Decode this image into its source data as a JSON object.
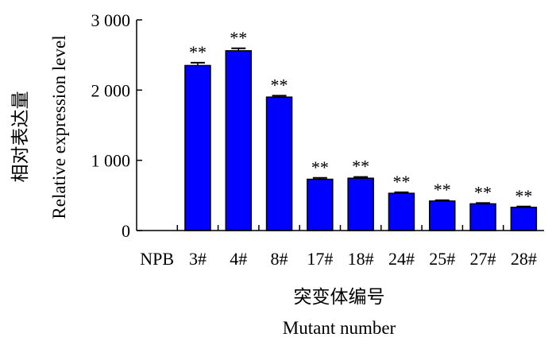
{
  "chart_data": {
    "type": "bar",
    "categories": [
      "NPB",
      "3#",
      "4#",
      "8#",
      "17#",
      "18#",
      "24#",
      "25#",
      "27#",
      "28#"
    ],
    "values": [
      0,
      2350,
      2560,
      1900,
      730,
      745,
      530,
      420,
      380,
      330
    ],
    "errors": [
      0,
      40,
      35,
      20,
      20,
      18,
      15,
      12,
      12,
      12
    ],
    "significance": [
      "",
      "**",
      "**",
      "**",
      "**",
      "**",
      "**",
      "**",
      "**",
      "**"
    ],
    "ylim": [
      0,
      3000
    ],
    "yticks": [
      0,
      1000,
      2000,
      3000
    ],
    "ytick_labels": [
      "0",
      "1 000",
      "2 000",
      "3 000"
    ],
    "ylabel_cn": "相对表达量",
    "ylabel": "Relative expression level",
    "xlabel_cn": "突变体编号",
    "xlabel": "Mutant number",
    "grid": false,
    "bar_color": "#0000ff"
  }
}
